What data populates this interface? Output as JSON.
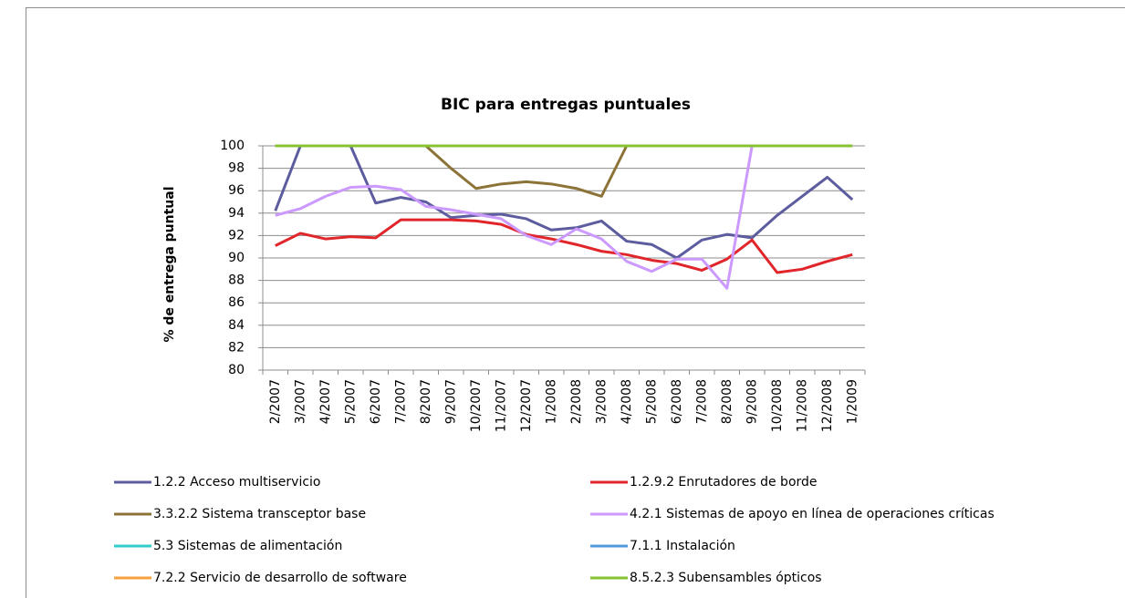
{
  "chart_data": {
    "type": "line",
    "title": "BIC para entregas puntuales",
    "y_label": "% de entrega puntual",
    "categories": [
      "2/2007",
      "3/2007",
      "4/2007",
      "5/2007",
      "6/2007",
      "7/2007",
      "8/2007",
      "9/2007",
      "10/2007",
      "11/2007",
      "12/2007",
      "1/2008",
      "2/2008",
      "3/2008",
      "4/2008",
      "5/2008",
      "6/2008",
      "7/2008",
      "8/2008",
      "9/2008",
      "10/2008",
      "11/2008",
      "12/2008",
      "1/2009"
    ],
    "ylim": [
      80,
      100
    ],
    "yticks": [
      80,
      82,
      84,
      86,
      88,
      90,
      92,
      94,
      96,
      98,
      100
    ],
    "grid": true,
    "series": [
      {
        "name": "1.2.2 Acceso multiservicio",
        "color": "#5c5c9e",
        "values": [
          94.2,
          100,
          100,
          100,
          94.9,
          95.4,
          95.0,
          93.6,
          93.8,
          93.9,
          93.5,
          92.5,
          92.7,
          93.3,
          91.5,
          91.2,
          90.0,
          91.6,
          92.1,
          91.8,
          93.8,
          95.5,
          97.2,
          95.2
        ]
      },
      {
        "name": "1.2.9.2 Enrutadores de borde",
        "color": "#e0262b",
        "values": [
          91.1,
          92.2,
          91.7,
          91.9,
          91.8,
          93.4,
          93.4,
          93.4,
          93.3,
          93.0,
          92.1,
          91.7,
          91.2,
          90.6,
          90.3,
          89.8,
          89.5,
          88.9,
          89.9,
          91.6,
          88.7,
          89.0,
          89.7,
          90.3
        ]
      },
      {
        "name": "3.3.2.2 Sistema  transceptor base",
        "color": "#8c7338",
        "values": [
          100,
          100,
          100,
          100,
          100,
          100,
          100,
          98.0,
          96.2,
          96.6,
          96.8,
          96.6,
          96.2,
          95.5,
          100,
          100,
          100,
          100,
          100,
          100,
          100,
          100,
          100,
          100
        ]
      },
      {
        "name": "4.2.1 Sistemas  de apoyo  en línea de operaciones críticas",
        "color": "#cc99ff",
        "values": [
          93.8,
          94.4,
          95.5,
          96.3,
          96.4,
          96.1,
          94.6,
          94.3,
          93.9,
          93.5,
          92.0,
          91.2,
          92.6,
          91.7,
          89.7,
          88.8,
          89.9,
          89.9,
          87.3,
          100,
          100,
          100,
          100,
          100
        ]
      },
      {
        "name": "5.3 Sistemas de alimentación",
        "color": "#33cccc",
        "values": [
          100,
          100,
          100,
          100,
          100,
          100,
          100,
          100,
          100,
          100,
          100,
          100,
          100,
          100,
          100,
          100,
          100,
          100,
          100,
          100,
          100,
          100,
          100,
          100
        ]
      },
      {
        "name": "7.1.1 Instalación",
        "color": "#4f9be0",
        "values": [
          100,
          100,
          100,
          100,
          100,
          100,
          100,
          100,
          100,
          100,
          100,
          100,
          100,
          100,
          100,
          100,
          100,
          100,
          100,
          100,
          100,
          100,
          100,
          100
        ]
      },
      {
        "name": "7.2.2 Servicio de desarrollo de software",
        "color": "#f7a23e",
        "values": [
          100,
          100,
          100,
          100,
          100,
          100,
          100,
          100,
          100,
          100,
          100,
          100,
          100,
          100,
          100,
          100,
          100,
          100,
          100,
          100,
          100,
          100,
          100,
          100
        ]
      },
      {
        "name": "8.5.2.3 Subensambles ópticos",
        "color": "#86c232",
        "values": [
          100,
          100,
          100,
          100,
          100,
          100,
          100,
          100,
          100,
          100,
          100,
          100,
          100,
          100,
          100,
          100,
          100,
          100,
          100,
          100,
          100,
          100,
          100,
          100
        ]
      }
    ]
  }
}
